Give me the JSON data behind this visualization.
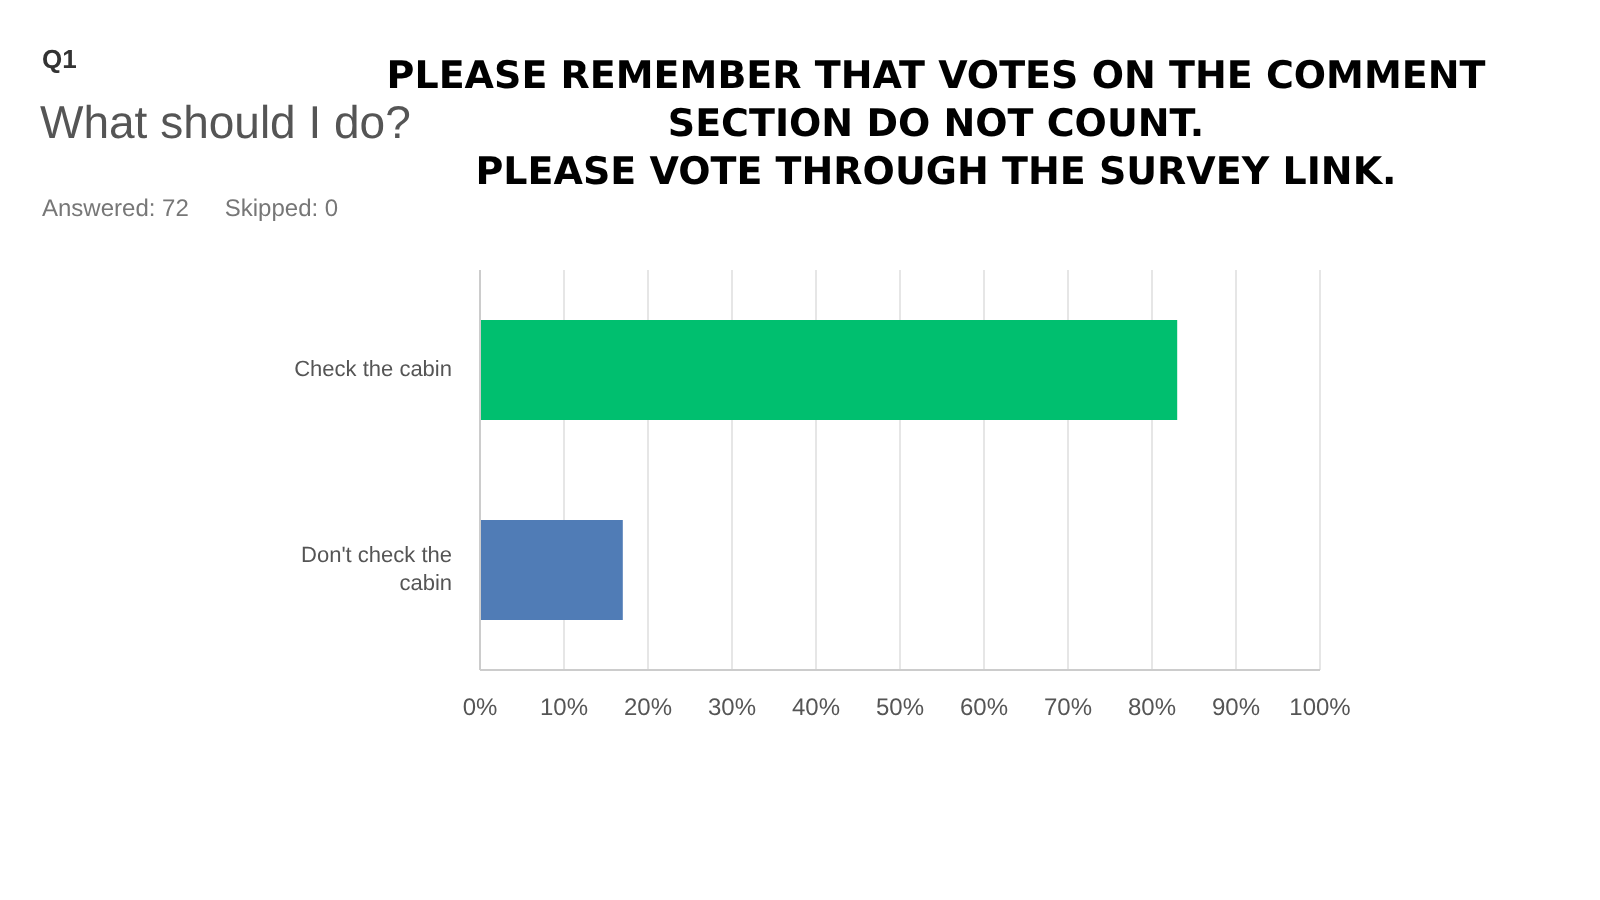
{
  "chart_data": {
    "type": "bar",
    "orientation": "horizontal",
    "subtitle": "Q1",
    "title": "What should I do?",
    "annotations": [
      "Answered: 72",
      "Skipped: 0",
      "PLEASE REMEMBER THAT VOTES ON THE COMMENT SECTION DO NOT COUNT.",
      "PLEASE VOTE THROUGH THE SURVEY LINK."
    ],
    "categories": [
      "Check the cabin",
      "Don't check the cabin"
    ],
    "values": [
      83,
      17
    ],
    "colors": [
      "#00bf6f",
      "#507cb6"
    ],
    "xlim": [
      0,
      100
    ],
    "xticks": [
      {
        "value": 0,
        "label": "0%"
      },
      {
        "value": 10,
        "label": "10%"
      },
      {
        "value": 20,
        "label": "20%"
      },
      {
        "value": 30,
        "label": "30%"
      },
      {
        "value": 40,
        "label": "40%"
      },
      {
        "value": 50,
        "label": "50%"
      },
      {
        "value": 60,
        "label": "60%"
      },
      {
        "value": 70,
        "label": "70%"
      },
      {
        "value": 80,
        "label": "80%"
      },
      {
        "value": 90,
        "label": "90%"
      },
      {
        "value": 100,
        "label": "100%"
      }
    ],
    "grid": "x"
  }
}
